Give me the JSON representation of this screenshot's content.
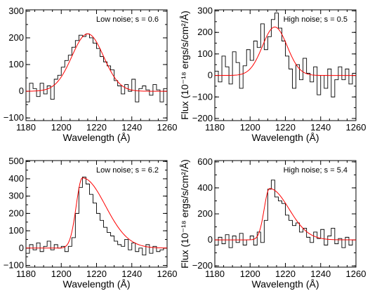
{
  "colors": {
    "data": "#000000",
    "fit": "#ff0000",
    "axis": "#000000"
  },
  "chart_data": [
    {
      "type": "line",
      "annotation": "Low noise; s = 0.6",
      "xlabel": "Wavelength (Å)",
      "ylabel": "",
      "xlim": [
        1180,
        1260
      ],
      "ylim": [
        -110,
        305
      ],
      "xticks": [
        1180,
        1200,
        1220,
        1240,
        1260
      ],
      "yticks": [
        -100,
        0,
        100,
        200,
        300
      ],
      "series": [
        {
          "style": "histogram",
          "x": [
            1180,
            1182,
            1184,
            1186,
            1188,
            1190,
            1192,
            1194,
            1196,
            1198,
            1200,
            1202,
            1204,
            1206,
            1208,
            1210,
            1212,
            1214,
            1216,
            1218,
            1220,
            1222,
            1224,
            1226,
            1228,
            1230,
            1232,
            1234,
            1236,
            1238,
            1240,
            1242,
            1244,
            1246,
            1248,
            1250,
            1252,
            1254,
            1256,
            1258
          ],
          "y": [
            -40,
            30,
            10,
            -20,
            30,
            -10,
            20,
            -30,
            45,
            60,
            90,
            115,
            135,
            165,
            190,
            210,
            205,
            215,
            200,
            180,
            160,
            130,
            110,
            95,
            80,
            40,
            20,
            -10,
            25,
            0,
            45,
            -40,
            10,
            20,
            5,
            -15,
            25,
            5,
            -40,
            10
          ]
        },
        {
          "style": "gaussian-fit",
          "amplitude": 215,
          "center": 1215,
          "sigma": 9,
          "baseline": 0
        }
      ]
    },
    {
      "type": "line",
      "annotation": "High noise; s = 0.5",
      "xlabel": "Wavelength (Å)",
      "ylabel": "Flux (10⁻¹⁸ ergs/s/cm²/Å)",
      "xlim": [
        1180,
        1260
      ],
      "ylim": [
        -210,
        305
      ],
      "xticks": [
        1180,
        1200,
        1220,
        1240,
        1260
      ],
      "yticks": [
        -200,
        -100,
        0,
        100,
        200,
        300
      ],
      "series": [
        {
          "style": "histogram",
          "x": [
            1180,
            1182,
            1184,
            1186,
            1188,
            1190,
            1192,
            1194,
            1196,
            1198,
            1200,
            1202,
            1204,
            1206,
            1208,
            1210,
            1212,
            1214,
            1216,
            1218,
            1220,
            1222,
            1224,
            1226,
            1228,
            1230,
            1232,
            1234,
            1236,
            1238,
            1240,
            1242,
            1244,
            1246,
            1248,
            1250,
            1252,
            1254,
            1256,
            1258
          ],
          "y": [
            20,
            -30,
            90,
            40,
            -40,
            110,
            60,
            -60,
            45,
            120,
            70,
            160,
            130,
            240,
            120,
            180,
            260,
            290,
            220,
            160,
            90,
            30,
            -60,
            50,
            -20,
            80,
            10,
            -30,
            40,
            -90,
            0,
            -60,
            30,
            -100,
            -20,
            40,
            -20,
            30,
            -40,
            10
          ]
        },
        {
          "style": "gaussian-fit",
          "amplitude": 225,
          "center": 1214,
          "sigma": 7,
          "baseline": 0
        }
      ]
    },
    {
      "type": "line",
      "annotation": "Low noise; s = 6.2",
      "xlabel": "Wavelength (Å)",
      "ylabel": "",
      "xlim": [
        1180,
        1260
      ],
      "ylim": [
        -110,
        505
      ],
      "xticks": [
        1180,
        1200,
        1220,
        1240,
        1260
      ],
      "yticks": [
        -100,
        0,
        100,
        200,
        300,
        400,
        500
      ],
      "series": [
        {
          "style": "histogram",
          "x": [
            1180,
            1182,
            1184,
            1186,
            1188,
            1190,
            1192,
            1194,
            1196,
            1198,
            1200,
            1202,
            1204,
            1206,
            1208,
            1210,
            1212,
            1214,
            1216,
            1218,
            1220,
            1222,
            1224,
            1226,
            1228,
            1230,
            1232,
            1234,
            1236,
            1238,
            1240,
            1242,
            1244,
            1246,
            1248,
            1250,
            1252,
            1254,
            1256,
            1258
          ],
          "y": [
            -30,
            20,
            -10,
            30,
            -20,
            10,
            40,
            -10,
            20,
            0,
            10,
            -20,
            10,
            60,
            200,
            350,
            410,
            370,
            310,
            260,
            200,
            160,
            120,
            90,
            70,
            40,
            20,
            10,
            50,
            -10,
            30,
            -20,
            0,
            -40,
            20,
            -30,
            10,
            -20,
            -10,
            0
          ]
        },
        {
          "style": "skewed-gaussian-fit",
          "amplitude": 405,
          "center": 1212,
          "sigma_blue": 3.5,
          "sigma_red": 13,
          "baseline": 0
        }
      ]
    },
    {
      "type": "line",
      "annotation": "High noise; s = 5.4",
      "xlabel": "Wavelength (Å)",
      "ylabel": "Flux (10⁻¹⁸ ergs/s/cm²/Å)",
      "xlim": [
        1180,
        1260
      ],
      "ylim": [
        -210,
        610
      ],
      "xticks": [
        1180,
        1200,
        1220,
        1240,
        1260
      ],
      "yticks": [
        -200,
        0,
        200,
        400,
        600
      ],
      "series": [
        {
          "style": "histogram",
          "x": [
            1180,
            1182,
            1184,
            1186,
            1188,
            1190,
            1192,
            1194,
            1196,
            1198,
            1200,
            1202,
            1204,
            1206,
            1208,
            1210,
            1212,
            1214,
            1216,
            1218,
            1220,
            1222,
            1224,
            1226,
            1228,
            1230,
            1232,
            1234,
            1236,
            1238,
            1240,
            1242,
            1244,
            1246,
            1248,
            1250,
            1252,
            1254,
            1256,
            1258
          ],
          "y": [
            -40,
            20,
            -30,
            40,
            -60,
            30,
            -20,
            50,
            -40,
            0,
            30,
            -40,
            60,
            -20,
            150,
            390,
            460,
            330,
            300,
            280,
            190,
            150,
            110,
            130,
            60,
            90,
            20,
            -20,
            60,
            10,
            80,
            -40,
            30,
            90,
            -30,
            10,
            -60,
            20,
            -40,
            0
          ]
        },
        {
          "style": "skewed-gaussian-fit",
          "amplitude": 395,
          "center": 1211,
          "sigma_blue": 3,
          "sigma_red": 11,
          "baseline": 0
        }
      ]
    }
  ]
}
